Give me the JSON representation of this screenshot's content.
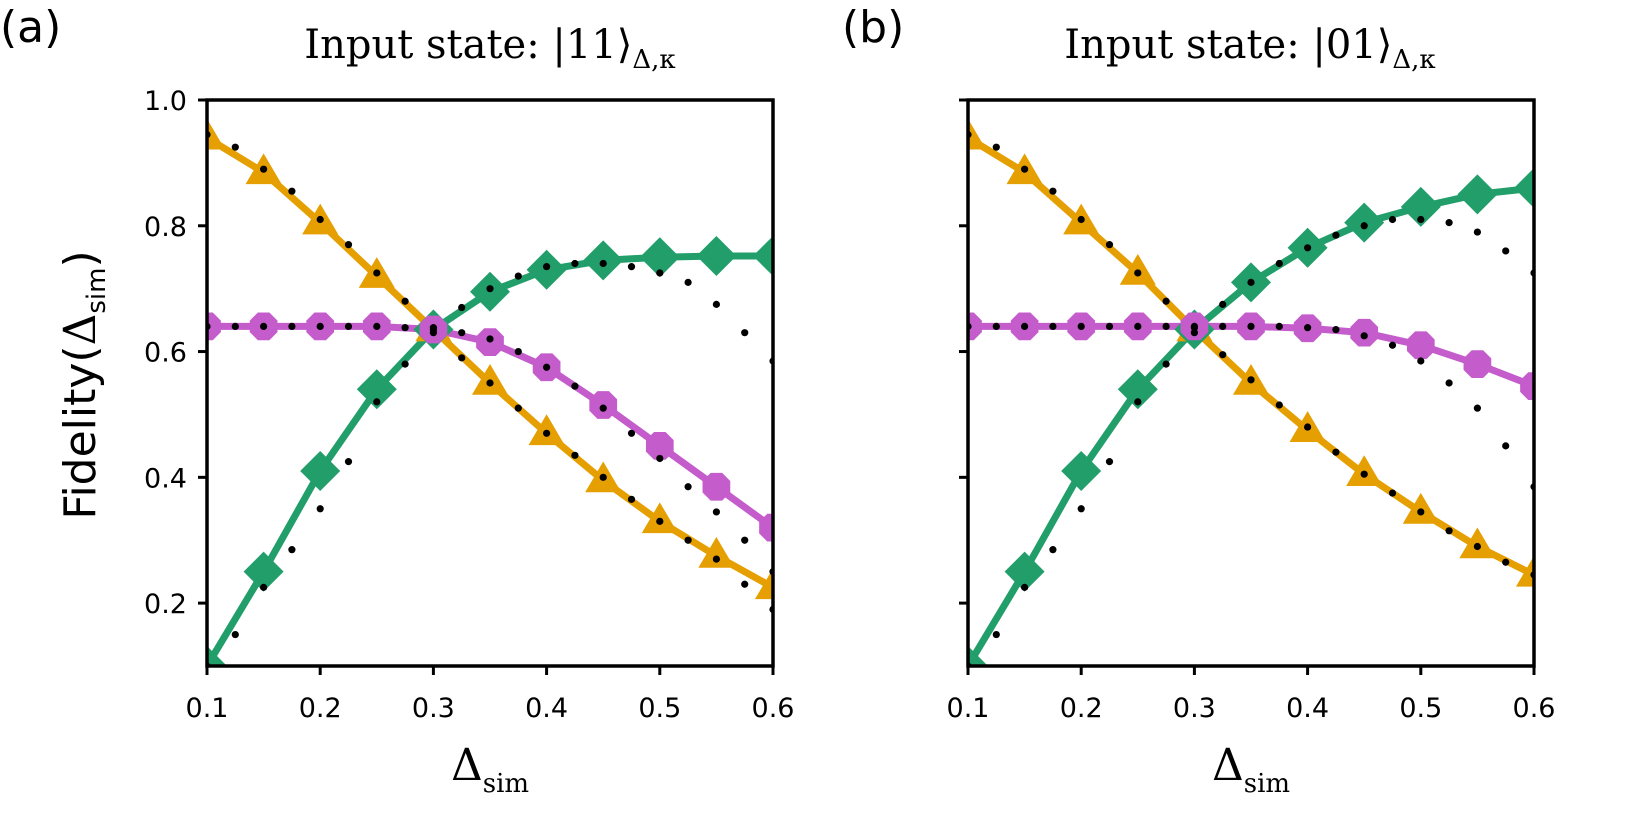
{
  "ylabel_text": "Fidelity(",
  "ylabel_symbol": "Δ",
  "ylabel_sub": "sim",
  "ylabel_close": ")",
  "xlabel_symbol": "Δ",
  "xlabel_sub": "sim",
  "colors": {
    "orange": "#E69F00",
    "green": "#229E6B",
    "purple": "#C45CCC",
    "dots": "#000000"
  },
  "chart_data": [
    {
      "panel": "(a)",
      "type": "line",
      "title_prefix": "Input state: ",
      "title_ket": "|11⟩",
      "title_sub": "Δ,κ",
      "xlim": [
        0.1,
        0.6
      ],
      "ylim": [
        0.1,
        1.0
      ],
      "xticks": [
        "0.1",
        "0.2",
        "0.3",
        "0.4",
        "0.5",
        "0.6"
      ],
      "yticks": [
        "0.2",
        "0.4",
        "0.6",
        "0.8",
        "1.0"
      ],
      "x": [
        0.1,
        0.15,
        0.2,
        0.25,
        0.3,
        0.35,
        0.4,
        0.45,
        0.5,
        0.55,
        0.6
      ],
      "series": [
        {
          "name": "orange-triangles",
          "marker": "triangle",
          "color": "#E69F00",
          "values": [
            0.94,
            0.885,
            0.805,
            0.72,
            0.635,
            0.55,
            0.47,
            0.395,
            0.33,
            0.275,
            0.225
          ]
        },
        {
          "name": "green-diamonds",
          "marker": "diamond",
          "color": "#229E6B",
          "values": [
            0.1,
            0.25,
            0.41,
            0.54,
            0.635,
            0.695,
            0.73,
            0.745,
            0.75,
            0.752,
            0.752
          ]
        },
        {
          "name": "purple-octagons",
          "marker": "octagon",
          "color": "#C45CCC",
          "values": [
            0.64,
            0.64,
            0.64,
            0.64,
            0.635,
            0.615,
            0.575,
            0.515,
            0.45,
            0.385,
            0.32
          ]
        }
      ],
      "dotted_series": [
        {
          "name": "orange-dotted",
          "x": [
            0.1,
            0.6
          ],
          "values": [
            0.945,
            0.19
          ],
          "x_dense": [
            0.1,
            0.125,
            0.15,
            0.175,
            0.2,
            0.225,
            0.25,
            0.275,
            0.3,
            0.325,
            0.35,
            0.375,
            0.4,
            0.425,
            0.45,
            0.475,
            0.5,
            0.525,
            0.55,
            0.575,
            0.6
          ],
          "values_dense": [
            0.945,
            0.925,
            0.89,
            0.855,
            0.81,
            0.77,
            0.725,
            0.68,
            0.638,
            0.59,
            0.55,
            0.51,
            0.47,
            0.435,
            0.4,
            0.365,
            0.33,
            0.3,
            0.27,
            0.23,
            0.19
          ]
        },
        {
          "name": "green-dotted",
          "x_dense": [
            0.1,
            0.125,
            0.15,
            0.175,
            0.2,
            0.225,
            0.25,
            0.275,
            0.3,
            0.325,
            0.35,
            0.375,
            0.4,
            0.425,
            0.45,
            0.475,
            0.5,
            0.525,
            0.55,
            0.575,
            0.6
          ],
          "values_dense": [
            0.1,
            0.15,
            0.225,
            0.285,
            0.35,
            0.425,
            0.52,
            0.58,
            0.63,
            0.67,
            0.7,
            0.72,
            0.735,
            0.74,
            0.74,
            0.735,
            0.725,
            0.71,
            0.675,
            0.63,
            0.585
          ]
        },
        {
          "name": "purple-dotted",
          "x_dense": [
            0.1,
            0.125,
            0.15,
            0.175,
            0.2,
            0.225,
            0.25,
            0.275,
            0.3,
            0.325,
            0.35,
            0.375,
            0.4,
            0.425,
            0.45,
            0.475,
            0.5,
            0.525,
            0.55,
            0.575,
            0.6
          ],
          "values_dense": [
            0.64,
            0.64,
            0.64,
            0.64,
            0.64,
            0.64,
            0.64,
            0.638,
            0.635,
            0.63,
            0.62,
            0.6,
            0.575,
            0.545,
            0.51,
            0.47,
            0.43,
            0.385,
            0.345,
            0.3,
            0.25
          ]
        }
      ]
    },
    {
      "panel": "(b)",
      "type": "line",
      "title_prefix": "Input state: ",
      "title_ket": "|01⟩",
      "title_sub": "Δ,κ",
      "xlim": [
        0.1,
        0.6
      ],
      "ylim": [
        0.1,
        1.0
      ],
      "xticks": [
        "0.1",
        "0.2",
        "0.3",
        "0.4",
        "0.5",
        "0.6"
      ],
      "yticks": [],
      "x": [
        0.1,
        0.15,
        0.2,
        0.25,
        0.3,
        0.35,
        0.4,
        0.45,
        0.5,
        0.55,
        0.6
      ],
      "series": [
        {
          "name": "orange-triangles",
          "marker": "triangle",
          "color": "#E69F00",
          "values": [
            0.94,
            0.885,
            0.805,
            0.725,
            0.635,
            0.55,
            0.475,
            0.405,
            0.345,
            0.29,
            0.245
          ]
        },
        {
          "name": "green-diamonds",
          "marker": "diamond",
          "color": "#229E6B",
          "values": [
            0.1,
            0.25,
            0.41,
            0.54,
            0.635,
            0.71,
            0.765,
            0.805,
            0.83,
            0.85,
            0.86
          ]
        },
        {
          "name": "purple-octagons",
          "marker": "octagon",
          "color": "#C45CCC",
          "values": [
            0.64,
            0.64,
            0.64,
            0.64,
            0.64,
            0.64,
            0.637,
            0.63,
            0.61,
            0.58,
            0.545
          ]
        }
      ],
      "dotted_series": [
        {
          "name": "orange-dotted",
          "x_dense": [
            0.1,
            0.125,
            0.15,
            0.175,
            0.2,
            0.225,
            0.25,
            0.275,
            0.3,
            0.325,
            0.35,
            0.375,
            0.4,
            0.425,
            0.45,
            0.475,
            0.5,
            0.525,
            0.55,
            0.575,
            0.6
          ],
          "values_dense": [
            0.945,
            0.925,
            0.89,
            0.855,
            0.81,
            0.77,
            0.725,
            0.68,
            0.638,
            0.595,
            0.555,
            0.515,
            0.48,
            0.44,
            0.405,
            0.375,
            0.345,
            0.315,
            0.29,
            0.265,
            0.245
          ]
        },
        {
          "name": "green-dotted",
          "x_dense": [
            0.1,
            0.125,
            0.15,
            0.175,
            0.2,
            0.225,
            0.25,
            0.275,
            0.3,
            0.325,
            0.35,
            0.375,
            0.4,
            0.425,
            0.45,
            0.475,
            0.5,
            0.525,
            0.55,
            0.575,
            0.6
          ],
          "values_dense": [
            0.1,
            0.15,
            0.225,
            0.285,
            0.35,
            0.425,
            0.52,
            0.58,
            0.63,
            0.675,
            0.71,
            0.74,
            0.765,
            0.785,
            0.8,
            0.81,
            0.81,
            0.805,
            0.79,
            0.76,
            0.725
          ]
        },
        {
          "name": "purple-dotted",
          "x_dense": [
            0.1,
            0.125,
            0.15,
            0.175,
            0.2,
            0.225,
            0.25,
            0.275,
            0.3,
            0.325,
            0.35,
            0.375,
            0.4,
            0.425,
            0.45,
            0.475,
            0.5,
            0.525,
            0.55,
            0.575,
            0.6
          ],
          "values_dense": [
            0.64,
            0.64,
            0.64,
            0.64,
            0.64,
            0.64,
            0.64,
            0.64,
            0.64,
            0.64,
            0.64,
            0.64,
            0.638,
            0.635,
            0.625,
            0.61,
            0.585,
            0.55,
            0.51,
            0.45,
            0.385
          ]
        }
      ]
    }
  ]
}
